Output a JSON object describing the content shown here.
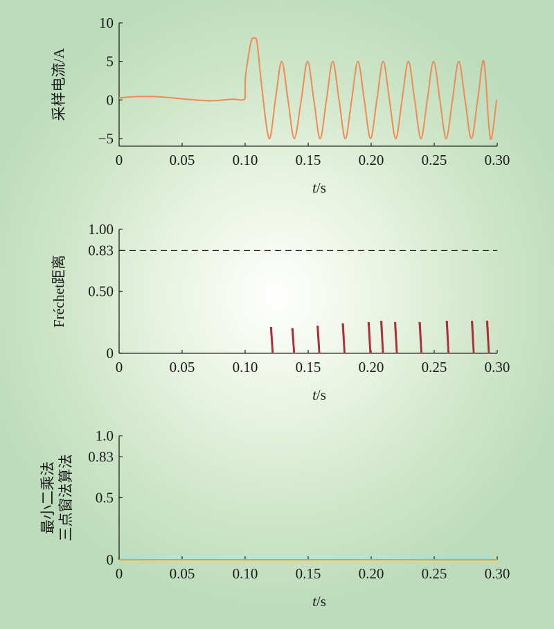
{
  "chart_data": [
    {
      "type": "line",
      "ylabel": "采样电流/A",
      "xlabel_var": "t",
      "xlabel_unit": "/s",
      "xlim": [
        0,
        0.3
      ],
      "ylim": [
        -6,
        10
      ],
      "x_ticks": [
        0,
        0.05,
        0.1,
        0.15,
        0.2,
        0.25,
        0.3
      ],
      "x_tick_labels": [
        "0",
        "0.05",
        "0.10",
        "0.15",
        "0.20",
        "0.25",
        "0.30"
      ],
      "y_ticks": [
        -5,
        0,
        5,
        10
      ],
      "y_tick_labels": [
        "−5",
        "0",
        "5",
        "10"
      ],
      "series": [
        {
          "color": "#f08a55",
          "x": [
            0,
            0.01,
            0.02,
            0.025,
            0.03,
            0.04,
            0.05,
            0.06,
            0.07,
            0.075,
            0.08,
            0.09,
            0.1,
            0.1001,
            0.1045,
            0.107,
            0.1095,
            0.113,
            0.119,
            0.124,
            0.129,
            0.134,
            0.139,
            0.1445,
            0.1495,
            0.1545,
            0.1595,
            0.1645,
            0.1695,
            0.1745,
            0.1795,
            0.1845,
            0.1895,
            0.1945,
            0.1995,
            0.2045,
            0.2095,
            0.2145,
            0.2195,
            0.2245,
            0.2295,
            0.2345,
            0.2395,
            0.2445,
            0.2495,
            0.2545,
            0.2595,
            0.2645,
            0.2695,
            0.2745,
            0.2795,
            0.2845,
            0.2895,
            0.2945,
            0.2995
          ],
          "y": [
            0.25,
            0.4,
            0.45,
            0.45,
            0.42,
            0.3,
            0.15,
            0.0,
            -0.1,
            -0.1,
            -0.05,
            0.1,
            0.2,
            2.8,
            7.4,
            8.0,
            7.4,
            2.0,
            -5.0,
            0.0,
            5.0,
            0.0,
            -5.0,
            0.0,
            5.0,
            0.0,
            -5.0,
            0.0,
            5.0,
            0.0,
            -5.0,
            0.0,
            5.0,
            0.0,
            -5.0,
            0.0,
            5.0,
            0.0,
            -5.0,
            0.0,
            5.0,
            0.0,
            -5.0,
            0.0,
            5.0,
            0.0,
            -5.0,
            0.0,
            5.0,
            0.0,
            -5.0,
            0.0,
            5.0,
            -5.0,
            0.0
          ]
        }
      ]
    },
    {
      "type": "bar",
      "ylabel": "Fréchet距离",
      "xlabel_var": "t",
      "xlabel_unit": "/s",
      "xlim": [
        0,
        0.3
      ],
      "ylim": [
        0,
        1.0
      ],
      "x_ticks": [
        0,
        0.05,
        0.1,
        0.15,
        0.2,
        0.25,
        0.3
      ],
      "x_tick_labels": [
        "0",
        "0.05",
        "0.10",
        "0.15",
        "0.20",
        "0.25",
        "0.30"
      ],
      "y_ticks": [
        0,
        0.5,
        0.83,
        1.0
      ],
      "y_tick_labels": [
        "0",
        "0.50",
        "0.83",
        "1.00"
      ],
      "threshold": 0.83,
      "spike_color": "#a8323a",
      "spikes": [
        {
          "x": 0.1205,
          "y": 0.21
        },
        {
          "x": 0.1375,
          "y": 0.2
        },
        {
          "x": 0.1575,
          "y": 0.22
        },
        {
          "x": 0.1775,
          "y": 0.24
        },
        {
          "x": 0.198,
          "y": 0.25
        },
        {
          "x": 0.208,
          "y": 0.26
        },
        {
          "x": 0.219,
          "y": 0.25
        },
        {
          "x": 0.2385,
          "y": 0.25
        },
        {
          "x": 0.26,
          "y": 0.26
        },
        {
          "x": 0.28,
          "y": 0.26
        },
        {
          "x": 0.292,
          "y": 0.26
        }
      ]
    },
    {
      "type": "line",
      "ylabel_lines": [
        "最小二乘法",
        "三点窗法算法"
      ],
      "xlabel_var": "t",
      "xlabel_unit": "/s",
      "xlim": [
        0,
        0.3
      ],
      "ylim": [
        0,
        1.0
      ],
      "x_ticks": [
        0,
        0.05,
        0.1,
        0.15,
        0.2,
        0.25,
        0.3
      ],
      "x_tick_labels": [
        "0",
        "0.05",
        "0.10",
        "0.15",
        "0.20",
        "0.25",
        "0.30"
      ],
      "y_ticks": [
        0,
        0.5,
        0.83,
        1.0
      ],
      "y_tick_labels": [
        "0",
        "0.5",
        "0.83",
        "1.0"
      ],
      "series": [
        {
          "color": "#f0a020",
          "x": [
            0,
            0.3
          ],
          "y": [
            0,
            0
          ]
        }
      ]
    }
  ]
}
